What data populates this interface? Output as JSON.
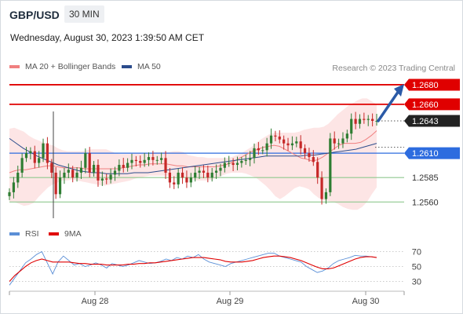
{
  "header": {
    "symbol": "GBP/USD",
    "timeframe": "30 MIN",
    "datetime": "Wednesday, August 30, 2023 1:39:50 AM CET"
  },
  "legend": {
    "ma20": {
      "label": "MA 20 + Bollinger Bands",
      "color": "#f08080"
    },
    "ma50": {
      "label": "MA 50",
      "color": "#2b4c8c"
    },
    "rsi": {
      "label": "RSI",
      "color": "#5b8fd6"
    },
    "ma9": {
      "label": "9MA",
      "color": "#e00000"
    }
  },
  "credit": "Research © 2023 Trading Central",
  "colors": {
    "up_candle": "#2e7d32",
    "down_candle": "#c62828",
    "resistance": "#e00000",
    "pivot": "#2d6cdf",
    "support": "#8fc98f",
    "bollinger_fill": "#fde0e0",
    "current_tag": "#222222",
    "arrow": "#2b5aa7"
  },
  "chart_data": [
    {
      "type": "candlestick",
      "title": "",
      "ylim": [
        1.2545,
        1.2688
      ],
      "x_ticks": [
        "Aug 28",
        "Aug 29",
        "Aug 30"
      ],
      "levels": [
        {
          "value": 1.268,
          "label": "1.2680",
          "kind": "resistance"
        },
        {
          "value": 1.266,
          "label": "1.2660",
          "kind": "resistance"
        },
        {
          "value": 1.2643,
          "label": "1.2643",
          "kind": "current"
        },
        {
          "value": 1.261,
          "label": "1.2610",
          "kind": "pivot"
        },
        {
          "value": 1.2585,
          "label": "1.2585",
          "kind": "support"
        },
        {
          "value": 1.256,
          "label": "1.2560",
          "kind": "support"
        }
      ],
      "series_close": [
        1.257,
        1.258,
        1.259,
        1.2605,
        1.261,
        1.2612,
        1.26,
        1.2605,
        1.262,
        1.26,
        1.259,
        1.2568,
        1.2585,
        1.259,
        1.2593,
        1.2585,
        1.259,
        1.2595,
        1.261,
        1.259,
        1.2598,
        1.2582,
        1.2584,
        1.2583,
        1.2588,
        1.2592,
        1.2598,
        1.2595,
        1.26,
        1.2603,
        1.2602,
        1.26,
        1.2603,
        1.2606,
        1.2603,
        1.2603,
        1.2605,
        1.259,
        1.258,
        1.2578,
        1.259,
        1.2585,
        1.258,
        1.2585,
        1.259,
        1.2592,
        1.259,
        1.2585,
        1.259,
        1.2592,
        1.2595,
        1.26,
        1.26,
        1.2598,
        1.26,
        1.2602,
        1.2603,
        1.2605,
        1.2615,
        1.2613,
        1.2613,
        1.262,
        1.2628,
        1.2627,
        1.2624,
        1.262,
        1.2618,
        1.262,
        1.2622,
        1.2615,
        1.261,
        1.2606,
        1.2601,
        1.2585,
        1.2563,
        1.257,
        1.2625,
        1.262,
        1.262,
        1.2625,
        1.263,
        1.2645,
        1.264,
        1.2645,
        1.2644,
        1.2645,
        1.2643,
        1.2643
      ],
      "bollinger_upper": [
        1.2635,
        1.2636,
        1.2634,
        1.2632,
        1.2628,
        1.2625,
        1.2623,
        1.2621,
        1.2619,
        1.2618,
        1.2615,
        1.2613,
        1.2612,
        1.2612,
        1.2612,
        1.2612,
        1.2613,
        1.2614,
        1.2614,
        1.2614,
        1.2614,
        1.2612,
        1.261,
        1.2609,
        1.2609,
        1.2609,
        1.261,
        1.261,
        1.261,
        1.261,
        1.2611,
        1.2611,
        1.2611,
        1.2611,
        1.2612,
        1.2612,
        1.2611,
        1.2608,
        1.2607,
        1.2606,
        1.2606,
        1.2605,
        1.2605,
        1.2605,
        1.2605,
        1.2605,
        1.2606,
        1.2608,
        1.261,
        1.2613,
        1.2616,
        1.262,
        1.2624,
        1.2627,
        1.263,
        1.2631,
        1.2631,
        1.2631,
        1.2631,
        1.2631,
        1.2632,
        1.2634,
        1.2635,
        1.2636,
        1.2636,
        1.2637,
        1.264,
        1.2645,
        1.265,
        1.2654,
        1.2658,
        1.2661,
        1.2664,
        1.2666,
        1.2666,
        1.2663,
        1.266
      ],
      "bollinger_lower": [
        1.256,
        1.256,
        1.2558,
        1.2556,
        1.2557,
        1.2559,
        1.2565,
        1.257,
        1.2575,
        1.2578,
        1.258,
        1.2582,
        1.2582,
        1.2583,
        1.2582,
        1.2581,
        1.258,
        1.2579,
        1.2578,
        1.2577,
        1.2577,
        1.2578,
        1.2579,
        1.258,
        1.2581,
        1.2582,
        1.2584,
        1.2585,
        1.2586,
        1.2587,
        1.2587,
        1.2587,
        1.2587,
        1.2587,
        1.2586,
        1.2586,
        1.2585,
        1.2584,
        1.2583,
        1.2582,
        1.2582,
        1.2582,
        1.2583,
        1.2585,
        1.2587,
        1.2589,
        1.259,
        1.259,
        1.259,
        1.2589,
        1.2587,
        1.2585,
        1.2581,
        1.2577,
        1.2572,
        1.2566,
        1.2563,
        1.2566,
        1.257,
        1.2574,
        1.2576,
        1.2575,
        1.2573,
        1.2568,
        1.2564,
        1.2562,
        1.2561,
        1.256,
        1.2558,
        1.2555,
        1.2553,
        1.2552,
        1.2552,
        1.2555,
        1.256,
        1.2568,
        1.2575
      ],
      "ma20": [
        1.259,
        1.2592,
        1.2593,
        1.2593,
        1.2594,
        1.2595,
        1.2596,
        1.2597,
        1.2597,
        1.2596,
        1.2595,
        1.2595,
        1.2595,
        1.2595,
        1.2594,
        1.2594,
        1.2594,
        1.2594,
        1.2594,
        1.2594,
        1.2594,
        1.2595,
        1.2596,
        1.2597,
        1.2598,
        1.2598,
        1.2599,
        1.2599,
        1.2599,
        1.2599,
        1.2598,
        1.2597,
        1.2597,
        1.2596,
        1.2596,
        1.2596,
        1.2596,
        1.2596,
        1.2596,
        1.2597,
        1.2598,
        1.26,
        1.2603,
        1.2606,
        1.2609,
        1.2612,
        1.2614,
        1.2616,
        1.2617,
        1.2618,
        1.2617,
        1.2614,
        1.2611,
        1.2608,
        1.2605,
        1.2604,
        1.2602,
        1.2603,
        1.2606,
        1.261,
        1.2614,
        1.2618,
        1.262,
        1.262,
        1.262,
        1.2621,
        1.2624,
        1.2628,
        1.2633
      ],
      "ma50": [
        1.2625,
        1.262,
        1.2615,
        1.2611,
        1.2607,
        1.2604,
        1.2601,
        1.2598,
        1.2596,
        1.2594,
        1.2592,
        1.2591,
        1.259,
        1.259,
        1.2589,
        1.2589,
        1.2589,
        1.2589,
        1.259,
        1.259,
        1.259,
        1.2591,
        1.2592,
        1.2593,
        1.2594,
        1.2595,
        1.2596,
        1.2597,
        1.2598,
        1.2599,
        1.26,
        1.2601,
        1.2602,
        1.2603,
        1.2604,
        1.2605,
        1.2606,
        1.2607,
        1.2607,
        1.2607,
        1.2607,
        1.2607,
        1.2607,
        1.2608,
        1.2608,
        1.2609,
        1.261,
        1.2611,
        1.2612,
        1.2613,
        1.2614,
        1.2616,
        1.2618,
        1.262
      ],
      "projection": {
        "from": 1.2643,
        "to": 1.268
      }
    },
    {
      "type": "line",
      "title": "",
      "ylim": [
        20,
        80
      ],
      "y_ticks": [
        70,
        50,
        30
      ],
      "series": [
        {
          "name": "RSI",
          "values": [
            25,
            35,
            45,
            55,
            60,
            66,
            70,
            55,
            40,
            56,
            64,
            58,
            52,
            54,
            50,
            52,
            55,
            52,
            48,
            54,
            52,
            50,
            52,
            55,
            58,
            56,
            54,
            55,
            57,
            60,
            58,
            62,
            60,
            64,
            62,
            66,
            60,
            56,
            54,
            52,
            50,
            54,
            56,
            58,
            60,
            62,
            64,
            66,
            68,
            68,
            64,
            62,
            60,
            58,
            56,
            50,
            46,
            42,
            44,
            48,
            54,
            58,
            60,
            62,
            65,
            64,
            64,
            63,
            62
          ]
        },
        {
          "name": "9MA",
          "values": [
            30,
            38,
            44,
            50,
            55,
            58,
            60,
            58,
            56,
            56,
            56,
            56,
            55,
            54,
            54,
            53,
            53,
            53,
            52,
            52,
            52,
            52,
            53,
            53,
            54,
            54,
            55,
            55,
            56,
            57,
            58,
            59,
            60,
            61,
            62,
            62,
            62,
            61,
            60,
            59,
            57,
            56,
            56,
            56,
            57,
            58,
            60,
            62,
            63,
            64,
            64,
            63,
            62,
            60,
            58,
            55,
            52,
            49,
            47,
            47,
            48,
            51,
            54,
            57,
            60,
            62,
            63,
            63,
            62
          ]
        }
      ]
    }
  ]
}
